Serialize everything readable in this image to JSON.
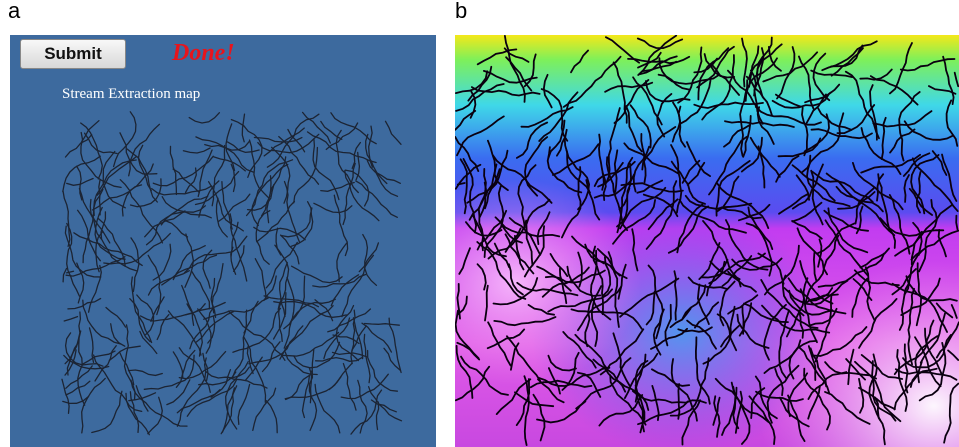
{
  "panels": {
    "a": {
      "label": "a",
      "button": "Submit",
      "status": "Done!",
      "map_title": "Stream Extraction map"
    },
    "b": {
      "label": "b"
    }
  }
}
